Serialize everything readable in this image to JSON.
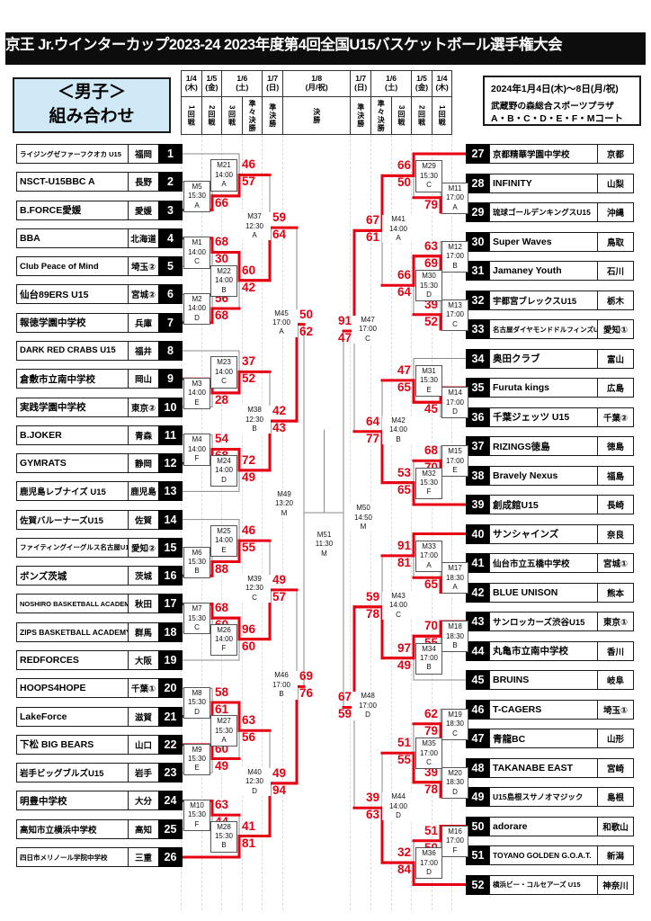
{
  "title": "京王 Jr.ウインターカップ2023-24 2023年度第4回全国U15バスケットボール選手権大会",
  "mens_box": {
    "line1": "＜男子＞",
    "line2": "組み合わせ"
  },
  "info_box": {
    "dates": "2024年1月4日(木)～8日(月/祝)",
    "venue": "武蔵野の森総合スポーツプラザ",
    "courts": "A・B・C・D・E・F・Mコート"
  },
  "header": {
    "dates": [
      "1/4\n(木)",
      "1/5\n(金)",
      "1/6\n(土)",
      "1/7\n(日)",
      "1/8\n(月/祝)",
      "1/7\n(日)",
      "1/6\n(土)",
      "1/5\n(金)",
      "1/4\n(木)"
    ],
    "date_spans": [
      1,
      1,
      2,
      1,
      1,
      1,
      2,
      1,
      1
    ],
    "rounds": [
      "1回戦",
      "2回戦",
      "3回戦",
      "準々決勝",
      "準決勝",
      "決勝",
      "準決勝",
      "準々決勝",
      "3回戦",
      "2回戦",
      "1回戦"
    ]
  },
  "colors": {
    "winner_path": "#e60012",
    "bracket_line": "#8a8a8a",
    "seed_box": "#000000",
    "mens_box_bg": "#cfe9f7"
  },
  "teams": [
    {
      "seed": 1,
      "name": "ライジングゼファーフクオカ U15",
      "pref": "福岡"
    },
    {
      "seed": 2,
      "name": "NSCT-U15BBC A",
      "pref": "長野"
    },
    {
      "seed": 3,
      "name": "B.FORCE愛媛",
      "pref": "愛媛"
    },
    {
      "seed": 4,
      "name": "BBA",
      "pref": "北海道"
    },
    {
      "seed": 5,
      "name": "Club Peace of Mind",
      "pref": "埼玉②"
    },
    {
      "seed": 6,
      "name": "仙台89ERS U15",
      "pref": "宮城②"
    },
    {
      "seed": 7,
      "name": "報徳学園中学校",
      "pref": "兵庫"
    },
    {
      "seed": 8,
      "name": "DARK RED CRABS U15",
      "pref": "福井"
    },
    {
      "seed": 9,
      "name": "倉敷市立南中学校",
      "pref": "岡山"
    },
    {
      "seed": 10,
      "name": "実践学園中学校",
      "pref": "東京②"
    },
    {
      "seed": 11,
      "name": "B.JOKER",
      "pref": "青森"
    },
    {
      "seed": 12,
      "name": "GYMRATS",
      "pref": "静岡"
    },
    {
      "seed": 13,
      "name": "鹿児島レブナイズ U15",
      "pref": "鹿児島"
    },
    {
      "seed": 14,
      "name": "佐賀バルーナーズU15",
      "pref": "佐賀"
    },
    {
      "seed": 15,
      "name": "ファイティングイーグルス名古屋U15",
      "pref": "愛知②"
    },
    {
      "seed": 16,
      "name": "ボンズ茨城",
      "pref": "茨城"
    },
    {
      "seed": 17,
      "name": "NOSHIRO BASKETBALL ACADEMY",
      "pref": "秋田"
    },
    {
      "seed": 18,
      "name": "ZIPS BASKETBALL ACADEMY",
      "pref": "群馬"
    },
    {
      "seed": 19,
      "name": "REDFORCES",
      "pref": "大阪"
    },
    {
      "seed": 20,
      "name": "HOOPS4HOPE",
      "pref": "千葉①"
    },
    {
      "seed": 21,
      "name": "LakeForce",
      "pref": "滋賀"
    },
    {
      "seed": 22,
      "name": "下松 BIG BEARS",
      "pref": "山口"
    },
    {
      "seed": 23,
      "name": "岩手ビッグブルズU15",
      "pref": "岩手"
    },
    {
      "seed": 24,
      "name": "明豊中学校",
      "pref": "大分"
    },
    {
      "seed": 25,
      "name": "高知市立横浜中学校",
      "pref": "高知"
    },
    {
      "seed": 26,
      "name": "四日市メリノール学院中学校",
      "pref": "三重"
    },
    {
      "seed": 27,
      "name": "京都精華学園中学校",
      "pref": "京都"
    },
    {
      "seed": 28,
      "name": "INFINITY",
      "pref": "山梨"
    },
    {
      "seed": 29,
      "name": "琉球ゴールデンキングスU15",
      "pref": "沖縄"
    },
    {
      "seed": 30,
      "name": "Super Waves",
      "pref": "鳥取"
    },
    {
      "seed": 31,
      "name": "Jamaney Youth",
      "pref": "石川"
    },
    {
      "seed": 32,
      "name": "宇都宮ブレックスU15",
      "pref": "栃木"
    },
    {
      "seed": 33,
      "name": "名古屋ダイヤモンドドルフィンズU15",
      "pref": "愛知①"
    },
    {
      "seed": 34,
      "name": "奥田クラブ",
      "pref": "富山"
    },
    {
      "seed": 35,
      "name": "Furuta kings",
      "pref": "広島"
    },
    {
      "seed": 36,
      "name": "千葉ジェッツ U15",
      "pref": "千葉②"
    },
    {
      "seed": 37,
      "name": "RIZINGS徳島",
      "pref": "徳島"
    },
    {
      "seed": 38,
      "name": "Bravely Nexus",
      "pref": "福島"
    },
    {
      "seed": 39,
      "name": "創成館U15",
      "pref": "長崎"
    },
    {
      "seed": 40,
      "name": "サンシャインズ",
      "pref": "奈良"
    },
    {
      "seed": 41,
      "name": "仙台市立五橋中学校",
      "pref": "宮城①"
    },
    {
      "seed": 42,
      "name": "BLUE UNISON",
      "pref": "熊本"
    },
    {
      "seed": 43,
      "name": "サンロッカーズ渋谷U15",
      "pref": "東京①"
    },
    {
      "seed": 44,
      "name": "丸亀市立南中学校",
      "pref": "香川"
    },
    {
      "seed": 45,
      "name": "BRUINS",
      "pref": "岐阜"
    },
    {
      "seed": 46,
      "name": "T-CAGERS",
      "pref": "埼玉①"
    },
    {
      "seed": 47,
      "name": "青龍BC",
      "pref": "山形"
    },
    {
      "seed": 48,
      "name": "TAKANABE EAST",
      "pref": "宮崎"
    },
    {
      "seed": 49,
      "name": "U15島根スサノオマジック",
      "pref": "島根"
    },
    {
      "seed": 50,
      "name": "adorare",
      "pref": "和歌山"
    },
    {
      "seed": 51,
      "name": "TOYANO GOLDEN G.O.A.T.",
      "pref": "新潟"
    },
    {
      "seed": 52,
      "name": "横浜ビー・コルセアーズ U15",
      "pref": "神奈川"
    }
  ],
  "matches": [
    {
      "code": "M1",
      "time": "14:00",
      "court": "C",
      "side": "L",
      "round": "1",
      "top": {
        "team": 4
      },
      "bottom": {
        "team": 5
      },
      "score1": "68",
      "score2": "30"
    },
    {
      "code": "M2",
      "time": "14:00",
      "court": "D",
      "side": "L",
      "round": "1",
      "top": {
        "team": 6
      },
      "bottom": {
        "team": 7
      },
      "score1": "56",
      "score2": "68"
    },
    {
      "code": "M3",
      "time": "14:00",
      "court": "E",
      "side": "L",
      "round": "1",
      "top": {
        "team": 9
      },
      "bottom": {
        "team": 10
      },
      "score1": "39",
      "score2": "28"
    },
    {
      "code": "M4",
      "time": "14:00",
      "court": "F",
      "side": "L",
      "round": "1",
      "top": {
        "team": 11
      },
      "bottom": {
        "team": 12
      },
      "score1": "54",
      "score2": "68"
    },
    {
      "code": "M5",
      "time": "15:30",
      "court": "A",
      "side": "L",
      "round": "1",
      "top": {
        "team": 2
      },
      "bottom": {
        "team": 3
      },
      "score1": "51",
      "score2": "66"
    },
    {
      "code": "M6",
      "time": "15:30",
      "court": "B",
      "side": "L",
      "round": "1",
      "top": {
        "team": 15
      },
      "bottom": {
        "team": 16
      },
      "score1": "63",
      "score2": "88"
    },
    {
      "code": "M7",
      "time": "15:30",
      "court": "C",
      "side": "L",
      "round": "1",
      "top": {
        "team": 17
      },
      "bottom": {
        "team": 18
      },
      "score1": "68",
      "score2": "60"
    },
    {
      "code": "M8",
      "time": "15:30",
      "court": "D",
      "side": "L",
      "round": "1",
      "top": {
        "team": 20
      },
      "bottom": {
        "team": 21
      },
      "score1": "58",
      "score2": "61"
    },
    {
      "code": "M9",
      "time": "15:30",
      "court": "E",
      "side": "L",
      "round": "1",
      "top": {
        "team": 22
      },
      "bottom": {
        "team": 23
      },
      "score1": "60",
      "score2": "49"
    },
    {
      "code": "M10",
      "time": "15:30",
      "court": "F",
      "side": "L",
      "round": "1",
      "top": {
        "team": 24
      },
      "bottom": {
        "team": 25
      },
      "score1": "63",
      "score2": "44"
    },
    {
      "code": "M11",
      "time": "17:00",
      "court": "A",
      "side": "R",
      "round": "1",
      "top": {
        "team": 28
      },
      "bottom": {
        "team": 29
      },
      "score1": "49",
      "score2": "79"
    },
    {
      "code": "M12",
      "time": "17:00",
      "court": "B",
      "side": "R",
      "round": "1",
      "top": {
        "team": 30
      },
      "bottom": {
        "team": 31
      },
      "score1": "63",
      "score2": "69"
    },
    {
      "code": "M13",
      "time": "17:00",
      "court": "C",
      "side": "R",
      "round": "1",
      "top": {
        "team": 32
      },
      "bottom": {
        "team": 33
      },
      "score1": "39",
      "score2": "52"
    },
    {
      "code": "M14",
      "time": "17:00",
      "court": "D",
      "side": "R",
      "round": "1",
      "top": {
        "team": 35
      },
      "bottom": {
        "team": 36
      },
      "score1": "52",
      "score2": "45"
    },
    {
      "code": "M15",
      "time": "17:00",
      "court": "E",
      "side": "R",
      "round": "1",
      "top": {
        "team": 37
      },
      "bottom": {
        "team": 38
      },
      "score1": "68",
      "score2": "70"
    },
    {
      "code": "M16",
      "time": "17:00",
      "court": "F",
      "side": "R",
      "round": "1",
      "top": {
        "team": 50
      },
      "bottom": {
        "team": 51
      },
      "score1": "51",
      "score2": "50"
    },
    {
      "code": "M17",
      "time": "18:30",
      "court": "A",
      "side": "R",
      "round": "1",
      "top": {
        "team": 41
      },
      "bottom": {
        "team": 42
      },
      "score1": "48",
      "score2": "65"
    },
    {
      "code": "M18",
      "time": "18:30",
      "court": "B",
      "side": "R",
      "round": "1",
      "top": {
        "team": 43
      },
      "bottom": {
        "team": 44
      },
      "score1": "70",
      "score2": "55"
    },
    {
      "code": "M19",
      "time": "18:30",
      "court": "C",
      "side": "R",
      "round": "1",
      "top": {
        "team": 46
      },
      "bottom": {
        "team": 47
      },
      "score1": "62",
      "score2": "79"
    },
    {
      "code": "M20",
      "time": "18:30",
      "court": "D",
      "side": "R",
      "round": "1",
      "top": {
        "team": 48
      },
      "bottom": {
        "team": 49
      },
      "score1": "39",
      "score2": "78"
    },
    {
      "code": "M21",
      "time": "14:00",
      "court": "A",
      "side": "L",
      "round": "2",
      "top": {
        "team": 1
      },
      "bottom": {
        "match": "M5"
      },
      "score1": "46",
      "score2": "57"
    },
    {
      "code": "M22",
      "time": "14:00",
      "court": "B",
      "side": "L",
      "round": "2",
      "top": {
        "match": "M1"
      },
      "bottom": {
        "match": "M2"
      },
      "score1": "60",
      "score2": "42"
    },
    {
      "code": "M23",
      "time": "14:00",
      "court": "C",
      "side": "L",
      "round": "2",
      "top": {
        "team": 8
      },
      "bottom": {
        "match": "M3"
      },
      "score1": "37",
      "score2": "52"
    },
    {
      "code": "M24",
      "time": "14:00",
      "court": "D",
      "side": "L",
      "round": "2",
      "top": {
        "match": "M4"
      },
      "bottom": {
        "team": 13
      },
      "score1": "72",
      "score2": "49"
    },
    {
      "code": "M25",
      "time": "14:00",
      "court": "E",
      "side": "L",
      "round": "2",
      "top": {
        "team": 14
      },
      "bottom": {
        "match": "M6"
      },
      "score1": "46",
      "score2": "55"
    },
    {
      "code": "M26",
      "time": "14:00",
      "court": "F",
      "side": "L",
      "round": "2",
      "top": {
        "match": "M7"
      },
      "bottom": {
        "team": 19
      },
      "score1": "96",
      "score2": "60"
    },
    {
      "code": "M27",
      "time": "15:30",
      "court": "A",
      "side": "L",
      "round": "2",
      "top": {
        "match": "M8"
      },
      "bottom": {
        "match": "M9"
      },
      "score1": "63",
      "score2": "56"
    },
    {
      "code": "M28",
      "time": "15:30",
      "court": "B",
      "side": "L",
      "round": "2",
      "top": {
        "match": "M10"
      },
      "bottom": {
        "team": 26
      },
      "score1": "41",
      "score2": "81"
    },
    {
      "code": "M29",
      "time": "15:30",
      "court": "C",
      "side": "R",
      "round": "2",
      "top": {
        "team": 27
      },
      "bottom": {
        "match": "M11"
      },
      "score1": "66",
      "score2": "50"
    },
    {
      "code": "M30",
      "time": "15:30",
      "court": "D",
      "side": "R",
      "round": "2",
      "top": {
        "match": "M12"
      },
      "bottom": {
        "match": "M13"
      },
      "score1": "66",
      "score2": "64"
    },
    {
      "code": "M31",
      "time": "15:30",
      "court": "E",
      "side": "R",
      "round": "2",
      "top": {
        "team": 34
      },
      "bottom": {
        "match": "M14"
      },
      "score1": "47",
      "score2": "65"
    },
    {
      "code": "M32",
      "time": "15:30",
      "court": "F",
      "side": "R",
      "round": "2",
      "top": {
        "match": "M15"
      },
      "bottom": {
        "team": 39
      },
      "score1": "53",
      "score2": "65"
    },
    {
      "code": "M33",
      "time": "17:00",
      "court": "A",
      "side": "R",
      "round": "2",
      "top": {
        "team": 40
      },
      "bottom": {
        "match": "M17"
      },
      "score1": "91",
      "score2": "81"
    },
    {
      "code": "M34",
      "time": "17:00",
      "court": "B",
      "side": "R",
      "round": "2",
      "top": {
        "match": "M18"
      },
      "bottom": {
        "team": 45
      },
      "score1": "97",
      "score2": "49"
    },
    {
      "code": "M35",
      "time": "17:00",
      "court": "C",
      "side": "R",
      "round": "2",
      "top": {
        "match": "M19"
      },
      "bottom": {
        "match": "M20"
      },
      "score1": "51",
      "score2": "55"
    },
    {
      "code": "M36",
      "time": "17:00",
      "court": "D",
      "side": "R",
      "round": "2",
      "top": {
        "match": "M16"
      },
      "bottom": {
        "team": 52
      },
      "score1": "32",
      "score2": "84"
    },
    {
      "code": "M37",
      "time": "12:30",
      "court": "A",
      "side": "L",
      "round": "3",
      "top": {
        "match": "M21"
      },
      "bottom": {
        "match": "M22"
      },
      "score1": "59",
      "score2": "64"
    },
    {
      "code": "M38",
      "time": "12:30",
      "court": "B",
      "side": "L",
      "round": "3",
      "top": {
        "match": "M23"
      },
      "bottom": {
        "match": "M24"
      },
      "score1": "42",
      "score2": "43"
    },
    {
      "code": "M39",
      "time": "12:30",
      "court": "C",
      "side": "L",
      "round": "3",
      "top": {
        "match": "M25"
      },
      "bottom": {
        "match": "M26"
      },
      "score1": "49",
      "score2": "57"
    },
    {
      "code": "M40",
      "time": "12:30",
      "court": "D",
      "side": "L",
      "round": "3",
      "top": {
        "match": "M27"
      },
      "bottom": {
        "match": "M28"
      },
      "score1": "49",
      "score2": "94"
    },
    {
      "code": "M41",
      "time": "14:00",
      "court": "A",
      "side": "R",
      "round": "3",
      "top": {
        "match": "M29"
      },
      "bottom": {
        "match": "M30"
      },
      "score1": "67",
      "score2": "61"
    },
    {
      "code": "M42",
      "time": "14:00",
      "court": "B",
      "side": "R",
      "round": "3",
      "top": {
        "match": "M31"
      },
      "bottom": {
        "match": "M32"
      },
      "score1": "64",
      "score2": "77"
    },
    {
      "code": "M43",
      "time": "14:00",
      "court": "C",
      "side": "R",
      "round": "3",
      "top": {
        "match": "M33"
      },
      "bottom": {
        "match": "M34"
      },
      "score1": "59",
      "score2": "78"
    },
    {
      "code": "M44",
      "time": "14:00",
      "court": "D",
      "side": "R",
      "round": "3",
      "top": {
        "match": "M35"
      },
      "bottom": {
        "match": "M36"
      },
      "score1": "39",
      "score2": "63"
    },
    {
      "code": "M45",
      "time": "17:00",
      "court": "A",
      "side": "L",
      "round": "QF",
      "top": {
        "match": "M37"
      },
      "bottom": {
        "match": "M38"
      },
      "score1": "50",
      "score2": "62"
    },
    {
      "code": "M46",
      "time": "17:00",
      "court": "B",
      "side": "L",
      "round": "QF",
      "top": {
        "match": "M39"
      },
      "bottom": {
        "match": "M40"
      },
      "score1": "69",
      "score2": "76"
    },
    {
      "code": "M47",
      "time": "17:00",
      "court": "C",
      "side": "R",
      "round": "QF",
      "top": {
        "match": "M41"
      },
      "bottom": {
        "match": "M42"
      },
      "score1": "91",
      "score2": "47"
    },
    {
      "code": "M48",
      "time": "17:00",
      "court": "D",
      "side": "R",
      "round": "QF",
      "top": {
        "match": "M43"
      },
      "bottom": {
        "match": "M44"
      },
      "score1": "67",
      "score2": "59"
    },
    {
      "code": "M49",
      "time": "13:20",
      "court": "M",
      "side": "L",
      "round": "SF",
      "top": {
        "match": "M45"
      },
      "bottom": {
        "match": "M46"
      },
      "score1": "",
      "score2": ""
    },
    {
      "code": "M50",
      "time": "14:50",
      "court": "M",
      "side": "R",
      "round": "SF",
      "top": {
        "match": "M47"
      },
      "bottom": {
        "match": "M48"
      },
      "score1": "",
      "score2": ""
    },
    {
      "code": "M51",
      "time": "11:30",
      "court": "M",
      "side": "C",
      "round": "F",
      "top": {
        "match": "M49"
      },
      "bottom": {
        "match": "M50"
      },
      "score1": "",
      "score2": ""
    }
  ]
}
